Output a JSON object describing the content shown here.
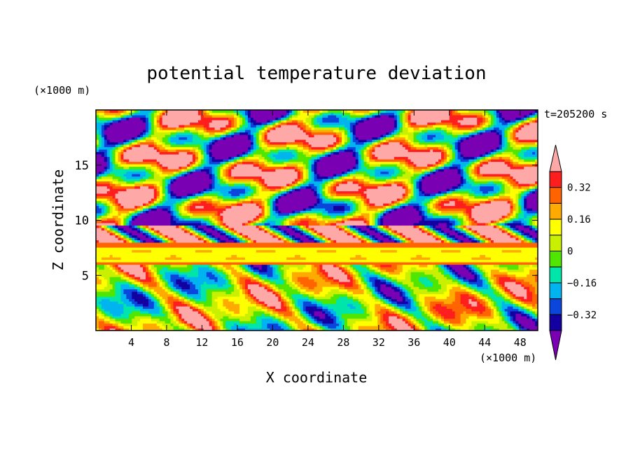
{
  "chart_data": {
    "type": "heatmap",
    "title": "potential temperature deviation",
    "xlabel": "X coordinate",
    "ylabel": "Z coordinate",
    "x_unit": "(×1000 m)",
    "y_unit": "(×1000 m)",
    "time_label": "t=205200 s",
    "xlim": [
      0,
      50
    ],
    "ylim": [
      0,
      20
    ],
    "x_ticks": [
      "4",
      "8",
      "12",
      "16",
      "20",
      "24",
      "28",
      "32",
      "36",
      "40",
      "44",
      "48"
    ],
    "y_ticks": [
      "5",
      "10",
      "15"
    ],
    "colorbar": {
      "levels": [
        -0.4,
        -0.32,
        -0.24,
        -0.16,
        -0.08,
        0,
        0.08,
        0.16,
        0.24,
        0.32,
        0.4
      ],
      "tick_labels": [
        "0.32",
        "0.16",
        "0",
        "−0.16",
        "−0.32"
      ],
      "colors_low_to_high": [
        "#7a00b4",
        "#1400a0",
        "#0a46dc",
        "#00b4f0",
        "#00e6aa",
        "#50e600",
        "#c8f000",
        "#ffff00",
        "#ffaa00",
        "#ff6400",
        "#ff1e1e",
        "#ffa8a8"
      ]
    }
  }
}
